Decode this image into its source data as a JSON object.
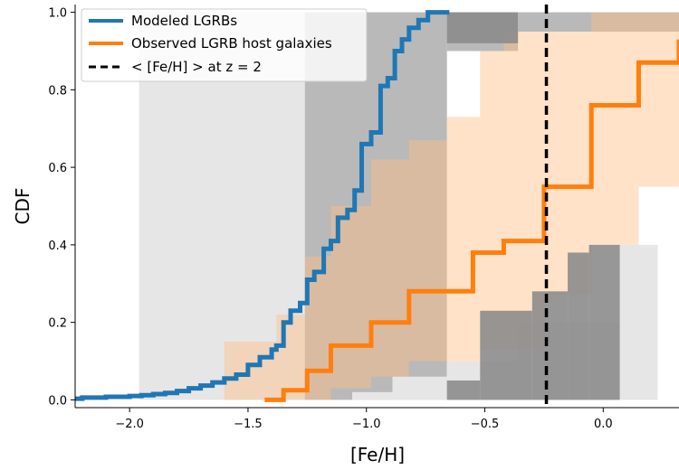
{
  "chart_data": {
    "type": "line",
    "xlabel": "[Fe/H]",
    "ylabel": "CDF",
    "xlim": [
      -2.23,
      0.32
    ],
    "ylim": [
      -0.02,
      1.02
    ],
    "xticks": [
      -2.0,
      -1.5,
      -1.0,
      -0.5,
      0.0
    ],
    "xtick_labels": [
      "−2.0",
      "−1.5",
      "−1.0",
      "−0.5",
      "0.0"
    ],
    "yticks": [
      0.0,
      0.2,
      0.4,
      0.6,
      0.8,
      1.0
    ],
    "ytick_labels": [
      "0.0",
      "0.2",
      "0.4",
      "0.6",
      "0.8",
      "1.0"
    ],
    "grid": false,
    "legend_position": "top-left",
    "legend": [
      {
        "label": "Modeled LGRBs",
        "style": "solid",
        "color": "#1f77b4"
      },
      {
        "label": "Observed LGRB host galaxies",
        "style": "solid",
        "color": "#ff7f0e"
      },
      {
        "label": "< [Fe/H] >  at z = 2",
        "style": "dashed",
        "color": "#000000"
      }
    ],
    "series": [
      {
        "name": "Modeled LGRBs",
        "color": "#1f77b4",
        "step": true,
        "x": [
          -2.23,
          -2.2,
          -2.1,
          -2.0,
          -1.95,
          -1.9,
          -1.85,
          -1.8,
          -1.75,
          -1.7,
          -1.65,
          -1.6,
          -1.55,
          -1.5,
          -1.45,
          -1.4,
          -1.38,
          -1.35,
          -1.32,
          -1.28,
          -1.25,
          -1.22,
          -1.18,
          -1.15,
          -1.12,
          -1.08,
          -1.05,
          -1.02,
          -0.98,
          -0.94,
          -0.91,
          -0.88,
          -0.85,
          -0.82,
          -0.78,
          -0.74,
          -0.65
        ],
        "y": [
          0.003,
          0.006,
          0.008,
          0.01,
          0.012,
          0.015,
          0.018,
          0.023,
          0.03,
          0.037,
          0.045,
          0.055,
          0.065,
          0.09,
          0.11,
          0.13,
          0.14,
          0.2,
          0.23,
          0.25,
          0.31,
          0.33,
          0.39,
          0.41,
          0.47,
          0.49,
          0.54,
          0.66,
          0.69,
          0.81,
          0.83,
          0.9,
          0.93,
          0.96,
          0.98,
          1.0,
          1.0
        ]
      },
      {
        "name": "Observed LGRB host galaxies",
        "color": "#ff7f0e",
        "step": true,
        "x": [
          -1.43,
          -1.35,
          -1.25,
          -1.15,
          -0.98,
          -0.82,
          -0.55,
          -0.42,
          -0.25,
          -0.05,
          0.15,
          0.32
        ],
        "y": [
          0.0,
          0.025,
          0.075,
          0.14,
          0.2,
          0.28,
          0.38,
          0.41,
          0.55,
          0.76,
          0.87,
          0.93
        ]
      }
    ],
    "reference_line": {
      "x": -0.24,
      "style": "dashed",
      "color": "#000000"
    },
    "bands": {
      "modeled": [
        {
          "x0": -1.96,
          "x1": -1.26,
          "y0": 0.0,
          "y1": 1.0,
          "shade": "light"
        },
        {
          "x0": -1.26,
          "x1": -0.66,
          "y0": 0.0,
          "y1": 1.0,
          "shade": "medium"
        },
        {
          "x0": -0.66,
          "x1": -0.36,
          "y0": 0.9,
          "y1": 1.0,
          "shade": "medium"
        },
        {
          "x0": -0.36,
          "x1": 0.32,
          "y0": 0.95,
          "y1": 1.0,
          "shade": "medium"
        },
        {
          "x0": -0.66,
          "x1": -0.36,
          "y0": 0.0,
          "y1": 0.1,
          "shade": "light"
        },
        {
          "x0": -0.36,
          "x1": 0.07,
          "y0": 0.0,
          "y1": 0.2,
          "shade": "light"
        },
        {
          "x0": 0.07,
          "x1": 0.23,
          "y0": 0.0,
          "y1": 0.4,
          "shade": "light"
        },
        {
          "x0": -0.89,
          "x1": -0.66,
          "y0": 0.0,
          "y1": 0.06,
          "shade": "light"
        },
        {
          "x0": -1.06,
          "x1": -0.89,
          "y0": 0.0,
          "y1": 0.02,
          "shade": "light"
        },
        {
          "x0": -0.66,
          "x1": -0.36,
          "y0": 0.92,
          "y1": 1.0,
          "shade": "dark"
        },
        {
          "x0": -0.66,
          "x1": -0.52,
          "y0": 0.0,
          "y1": 0.05,
          "shade": "dark"
        },
        {
          "x0": -0.52,
          "x1": -0.3,
          "y0": 0.0,
          "y1": 0.23,
          "shade": "dark"
        },
        {
          "x0": -0.3,
          "x1": -0.15,
          "y0": 0.0,
          "y1": 0.28,
          "shade": "dark"
        },
        {
          "x0": -0.15,
          "x1": -0.06,
          "y0": 0.0,
          "y1": 0.38,
          "shade": "dark"
        },
        {
          "x0": -0.06,
          "x1": 0.07,
          "y0": 0.0,
          "y1": 0.4,
          "shade": "dark"
        }
      ],
      "observed": [
        {
          "x0": -1.6,
          "x1": -1.38,
          "lo": 0.0,
          "hi": 0.15
        },
        {
          "x0": -1.38,
          "x1": -1.26,
          "lo": 0.0,
          "hi": 0.22
        },
        {
          "x0": -1.26,
          "x1": -1.15,
          "lo": 0.0,
          "hi": 0.37
        },
        {
          "x0": -1.15,
          "x1": -0.98,
          "lo": 0.03,
          "hi": 0.5
        },
        {
          "x0": -0.98,
          "x1": -0.82,
          "lo": 0.06,
          "hi": 0.62
        },
        {
          "x0": -0.82,
          "x1": -0.66,
          "lo": 0.1,
          "hi": 0.67
        },
        {
          "x0": -0.66,
          "x1": -0.52,
          "lo": 0.1,
          "hi": 0.73
        },
        {
          "x0": -0.52,
          "x1": -0.42,
          "lo": 0.13,
          "hi": 0.9
        },
        {
          "x0": -0.42,
          "x1": -0.25,
          "lo": 0.13,
          "hi": 0.95
        },
        {
          "x0": -0.25,
          "x1": -0.05,
          "lo": 0.27,
          "hi": 0.95
        },
        {
          "x0": -0.05,
          "x1": 0.15,
          "lo": 0.4,
          "hi": 1.0
        },
        {
          "x0": 0.15,
          "x1": 0.32,
          "lo": 0.55,
          "hi": 1.0
        }
      ]
    }
  }
}
